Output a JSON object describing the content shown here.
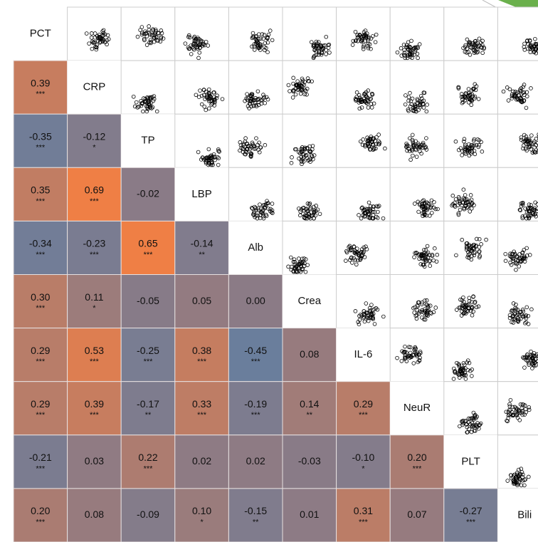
{
  "chart_data": {
    "type": "correlation_matrix",
    "variables": [
      "PCT",
      "CRP",
      "TP",
      "LBP",
      "Alb",
      "Crea",
      "IL-6",
      "NeuR",
      "PLT",
      "Bili"
    ],
    "correlations": [
      [],
      [
        0.39
      ],
      [
        -0.35,
        -0.12
      ],
      [
        0.35,
        0.69,
        -0.02
      ],
      [
        -0.34,
        -0.23,
        0.65,
        -0.14
      ],
      [
        0.3,
        0.11,
        -0.05,
        0.05,
        0
      ],
      [
        0.29,
        0.53,
        -0.25,
        0.38,
        -0.45,
        0.08
      ],
      [
        0.29,
        0.39,
        -0.17,
        0.33,
        -0.19,
        0.14,
        0.29
      ],
      [
        -0.21,
        0.03,
        0.22,
        0.02,
        0.02,
        -0.03,
        -0.1,
        0.2
      ],
      [
        0.2,
        0.08,
        -0.09,
        0.1,
        -0.15,
        0.01,
        0.31,
        0.07,
        -0.27
      ]
    ],
    "value_labels": [
      [],
      [
        "0.39"
      ],
      [
        "-0.35",
        "-0.12"
      ],
      [
        "0.35",
        "0.69",
        "-0.02"
      ],
      [
        "-0.34",
        "-0.23",
        "0.65",
        "-0.14"
      ],
      [
        "0.30",
        "0.11",
        "-0.05",
        "0.05",
        "0.00"
      ],
      [
        "0.29",
        "0.53",
        "-0.25",
        "0.38",
        "-0.45",
        "0.08"
      ],
      [
        "0.29",
        "0.39",
        "-0.17",
        "0.33",
        "-0.19",
        "0.14",
        "0.29"
      ],
      [
        "-0.21",
        "0.03",
        "0.22",
        "0.02",
        "0.02",
        "-0.03",
        "-0.10",
        "0.20"
      ],
      [
        "0.20",
        "0.08",
        "-0.09",
        "0.10",
        "-0.15",
        "0.01",
        "0.31",
        "0.07",
        "-0.27"
      ]
    ],
    "significance": [
      [],
      [
        "***"
      ],
      [
        "***",
        "*"
      ],
      [
        "***",
        "***",
        null
      ],
      [
        "***",
        "***",
        "***",
        "**"
      ],
      [
        "***",
        "*",
        null,
        null,
        null
      ],
      [
        "***",
        "***",
        "***",
        "***",
        "***",
        null
      ],
      [
        "***",
        "***",
        "**",
        "***",
        "***",
        "**",
        "***"
      ],
      [
        "***",
        null,
        "***",
        null,
        null,
        null,
        "*",
        "***"
      ],
      [
        "***",
        null,
        null,
        "*",
        "**",
        null,
        "***",
        null,
        "***"
      ]
    ],
    "positive_color": "#ef7f45",
    "negative_color": "#5b7fa6",
    "neutral_color": "#8b7b86"
  }
}
